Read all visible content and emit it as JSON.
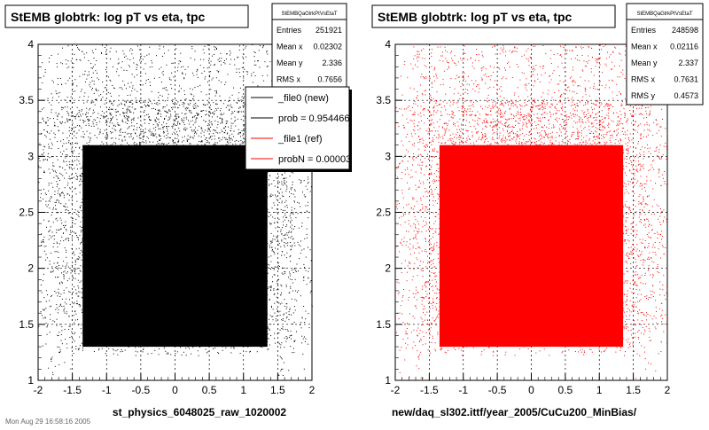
{
  "chart_data": [
    {
      "type": "scatter",
      "title": "StEMB globtrk: log pT vs eta, tpc",
      "xlabel": "st_physics_6048025_raw_1020002",
      "ylabel": "",
      "xlim": [
        -2,
        2
      ],
      "ylim": [
        1,
        4
      ],
      "x_ticks": [
        "-2",
        "-1.5",
        "-1",
        "-0.5",
        "0",
        "0.5",
        "1",
        "1.5",
        "2"
      ],
      "y_ticks": [
        "1",
        "1.5",
        "2",
        "2.5",
        "3",
        "3.5",
        "4"
      ],
      "grid": true,
      "color": "#000000",
      "stats": {
        "header": "StEMBQaGlrkPtVsEtaT",
        "rows": [
          {
            "label": "Entries",
            "value": "251921"
          },
          {
            "label": "Mean x",
            "value": "0.02302"
          },
          {
            "label": "Mean y",
            "value": "2.336"
          },
          {
            "label": "RMS x",
            "value": "0.7656"
          }
        ]
      },
      "legend": {
        "placement": "top-right",
        "entries": [
          {
            "label": "_file0 (new)",
            "color": "#000000"
          },
          {
            "label": "prob = 0.954466",
            "color": "#000000"
          },
          {
            "label": "_file1 (ref)",
            "color": "#ff0000"
          },
          {
            "label": "probN = 0.00003",
            "color": "#ff0000"
          }
        ]
      },
      "density_core": {
        "x_range": [
          -1.35,
          1.35
        ],
        "y_range": [
          1.3,
          3.1
        ]
      }
    },
    {
      "type": "scatter",
      "title": "StEMB globtrk: log pT vs eta, tpc",
      "xlabel": "new/daq_sl302.ittf/year_2005/CuCu200_MinBias/",
      "ylabel": "",
      "xlim": [
        -2,
        2
      ],
      "ylim": [
        1,
        4
      ],
      "x_ticks": [
        "-2",
        "-1.5",
        "-1",
        "-0.5",
        "0",
        "0.5",
        "1",
        "1.5",
        "2"
      ],
      "y_ticks": [
        "1",
        "1.5",
        "2",
        "2.5",
        "3",
        "3.5",
        "4"
      ],
      "grid": true,
      "color": "#ff0000",
      "stats": {
        "header": "StEMBQaGlrkPtVsEtaT",
        "rows": [
          {
            "label": "Entries",
            "value": "248598"
          },
          {
            "label": "Mean x",
            "value": "0.02116"
          },
          {
            "label": "Mean y",
            "value": "2.337"
          },
          {
            "label": "RMS x",
            "value": "0.7631"
          },
          {
            "label": "RMS y",
            "value": "0.4573"
          }
        ]
      },
      "density_core": {
        "x_range": [
          -1.35,
          1.35
        ],
        "y_range": [
          1.3,
          3.1
        ]
      }
    }
  ],
  "footer": {
    "date_text": "Mon Aug 29 16:58:16 2005"
  }
}
